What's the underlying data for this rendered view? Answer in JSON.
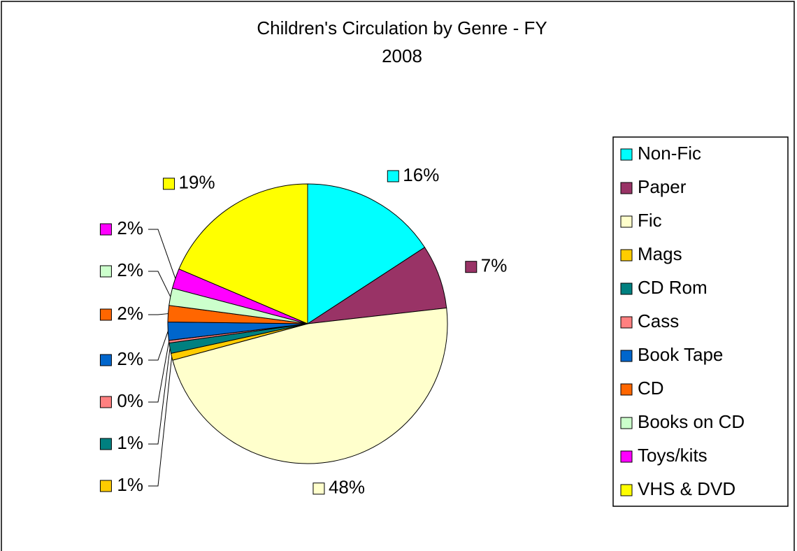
{
  "chart_data": {
    "type": "pie",
    "title": "Children's Circulation by Genre - FY 2008",
    "categories": [
      "Non-Fic",
      "Paper",
      "Fic",
      "Mags",
      "CD Rom",
      "Cass",
      "Book Tape",
      "CD",
      "Books on CD",
      "Toys/kits",
      "VHS & DVD"
    ],
    "values": [
      15.8,
      7.4,
      47.6,
      0.8,
      1.2,
      0.3,
      2.1,
      1.9,
      2.0,
      2.3,
      18.6
    ],
    "value_labels": [
      "16%",
      "7%",
      "48%",
      "1%",
      "1%",
      "0%",
      "2%",
      "2%",
      "2%",
      "2%",
      "19%"
    ],
    "colors": [
      "#00ffff",
      "#993366",
      "#ffffcc",
      "#ffcc00",
      "#008080",
      "#ff8080",
      "#0066cc",
      "#ff6600",
      "#ccffcc",
      "#ff00ff",
      "#ffff00"
    ],
    "legend": "right"
  }
}
